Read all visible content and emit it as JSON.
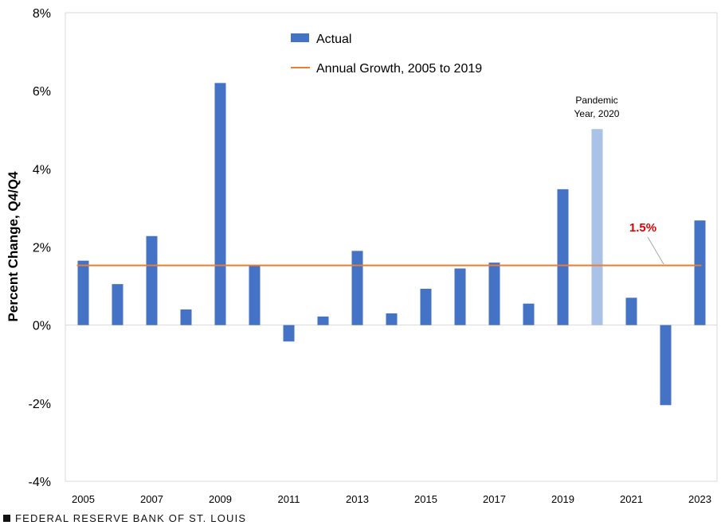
{
  "chart_data": {
    "type": "bar",
    "categories": [
      "2005",
      "2006",
      "2007",
      "2008",
      "2009",
      "2010",
      "2011",
      "2012",
      "2013",
      "2014",
      "2015",
      "2016",
      "2017",
      "2018",
      "2019",
      "2020",
      "2021",
      "2022",
      "2023"
    ],
    "x_tick_labels": [
      "2005",
      "",
      "2007",
      "",
      "2009",
      "",
      "2011",
      "",
      "2013",
      "",
      "2015",
      "",
      "2017",
      "",
      "2019",
      "",
      "2021",
      "",
      "2023"
    ],
    "series": [
      {
        "name": "Actual",
        "values": [
          1.65,
          1.05,
          2.28,
          0.4,
          6.2,
          1.52,
          -0.42,
          0.22,
          1.9,
          0.3,
          0.93,
          1.45,
          1.6,
          0.55,
          3.48,
          5.02,
          0.7,
          -2.05,
          2.68
        ]
      }
    ],
    "highlighted_category": "2020",
    "reference_line": {
      "name": "Annual Growth, 2005 to 2019",
      "value": 1.53
    },
    "ylabel": "Percent Change, Q4/Q4",
    "ylim": [
      -4,
      8
    ],
    "y_ticks": [
      -4,
      -2,
      0,
      2,
      4,
      6,
      8
    ],
    "y_tick_labels": [
      "-4%",
      "-2%",
      "0%",
      "2%",
      "4%",
      "6%",
      "8%"
    ],
    "annotations": {
      "pandemic_line1": "Pandemic",
      "pandemic_line2": "Year, 2020",
      "reference_value_label": "1.5%"
    },
    "legend_position": "top-center",
    "grid": false
  },
  "colors": {
    "bar": "#4472C4",
    "bar_highlight": "#A9C2E6",
    "reference_line": "#ED7D31",
    "reference_label": "#E00000",
    "axis": "#D9D9D9",
    "text": "#000000"
  },
  "footer": {
    "source": "FEDERAL RESERVE BANK OF ST. LOUIS"
  }
}
